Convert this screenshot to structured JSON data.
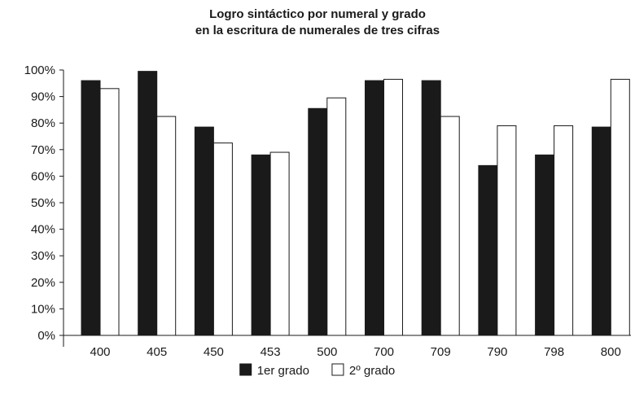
{
  "chart_data": {
    "type": "bar",
    "title_lines": [
      "Logro sintáctico por numeral y grado",
      "en la escritura de numerales de tres cifras"
    ],
    "categories": [
      "400",
      "405",
      "450",
      "453",
      "500",
      "700",
      "709",
      "790",
      "798",
      "800"
    ],
    "series": [
      {
        "name": "1er grado",
        "color": "#1a1a1a",
        "values": [
          96,
          99.5,
          78.5,
          68,
          85.5,
          96,
          96,
          64,
          68,
          78.5
        ]
      },
      {
        "name": "2º grado",
        "color": "#ffffff",
        "values": [
          93,
          82.5,
          72.5,
          69,
          89.5,
          96.5,
          82.5,
          79,
          79,
          96.5
        ]
      }
    ],
    "y_ticks": [
      "0%",
      "10%",
      "20%",
      "30%",
      "40%",
      "50%",
      "60%",
      "70%",
      "80%",
      "90%",
      "100%"
    ],
    "ylim": [
      0,
      100
    ],
    "xlabel": "",
    "ylabel": "",
    "grid": false,
    "legend_position": "bottom-center"
  }
}
